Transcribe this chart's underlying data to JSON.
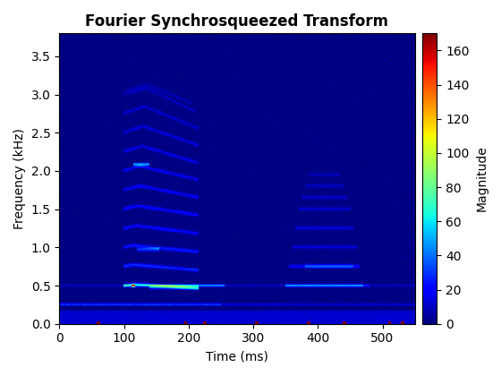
{
  "title": "Fourier Synchrosqueezed Transform",
  "xlabel": "Time (ms)",
  "ylabel": "Frequency (kHz)",
  "colorbar_label": "Magnitude",
  "xlim": [
    0,
    550
  ],
  "ylim": [
    0,
    3.8
  ],
  "xticks": [
    0,
    100,
    200,
    300,
    400,
    500
  ],
  "yticks": [
    0,
    0.5,
    1.0,
    1.5,
    2.0,
    2.5,
    3.0,
    3.5
  ],
  "vmin": 0,
  "vmax": 170,
  "colormap": "jet",
  "time_max_ms": 550,
  "freq_max_khz": 3.8,
  "n_time": 550,
  "n_freq": 380,
  "cbar_ticks": [
    0,
    20,
    40,
    60,
    80,
    100,
    120,
    140,
    160
  ]
}
